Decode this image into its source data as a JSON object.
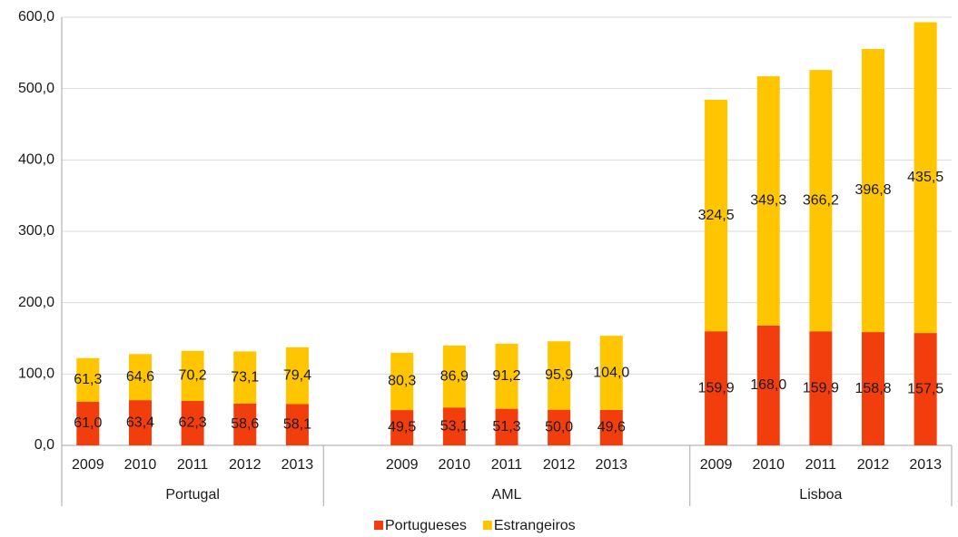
{
  "chart_data": {
    "type": "stacked_bar",
    "groups": [
      {
        "name": "Portugal",
        "categories": [
          "2009",
          "2010",
          "2011",
          "2012",
          "2013"
        ]
      },
      {
        "name": "AML",
        "categories": [
          null,
          "2009",
          "2010",
          "2011",
          "2012",
          "2013",
          null
        ]
      },
      {
        "name": "Lisboa",
        "categories": [
          "2009",
          "2010",
          "2011",
          "2012",
          "2013"
        ]
      }
    ],
    "series": [
      {
        "name": "Portugueses",
        "color": "#f23d0c",
        "values": [
          61.0,
          63.4,
          62.3,
          58.6,
          58.1,
          null,
          49.5,
          53.1,
          51.3,
          50.0,
          49.6,
          null,
          159.9,
          168.0,
          159.9,
          158.8,
          157.5
        ],
        "value_labels": [
          "61,0",
          "63,4",
          "62,3",
          "58,6",
          "58,1",
          null,
          "49,5",
          "53,1",
          "51,3",
          "50,0",
          "49,6",
          null,
          "159,9",
          "168,0",
          "159,9",
          "158,8",
          "157,5"
        ]
      },
      {
        "name": "Estrangeiros",
        "color": "#ffc600",
        "values": [
          61.3,
          64.6,
          70.2,
          73.1,
          79.4,
          null,
          80.3,
          86.9,
          91.2,
          95.9,
          104.0,
          null,
          324.5,
          349.3,
          366.2,
          396.8,
          435.5
        ],
        "value_labels": [
          "61,3",
          "64,6",
          "70,2",
          "73,1",
          "79,4",
          null,
          "80,3",
          "86,9",
          "91,2",
          "95,9",
          "104,0",
          null,
          "324,5",
          "349,3",
          "366,2",
          "396,8",
          "435,5"
        ]
      }
    ],
    "ylim": [
      0,
      600
    ],
    "yticks": [
      {
        "value": 0,
        "label": "0,0"
      },
      {
        "value": 100,
        "label": "100,0"
      },
      {
        "value": 200,
        "label": "200,0"
      },
      {
        "value": 300,
        "label": "300,0"
      },
      {
        "value": 400,
        "label": "400,0"
      },
      {
        "value": 500,
        "label": "500,0"
      },
      {
        "value": 600,
        "label": "600,0"
      }
    ],
    "grid": true,
    "legend": "bottom"
  }
}
